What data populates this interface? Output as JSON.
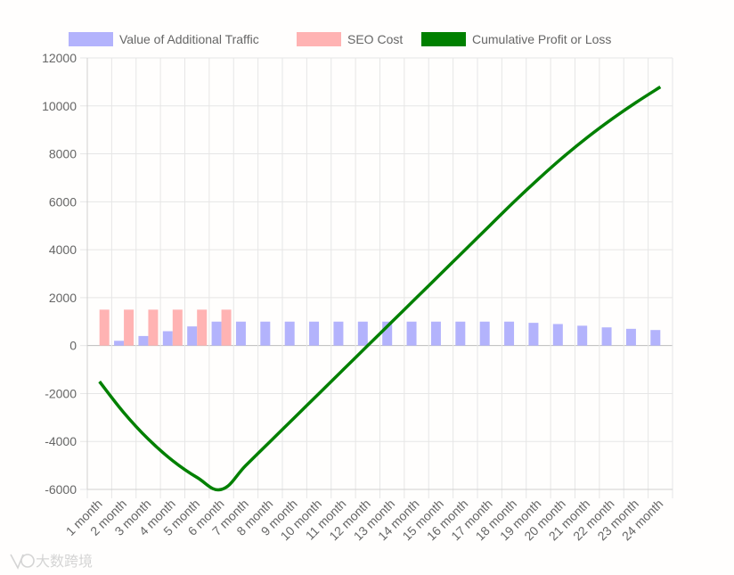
{
  "chart_data": {
    "type": "bar",
    "title": "",
    "xlabel": "",
    "ylabel": "",
    "ylim": [
      -6000,
      12000
    ],
    "y_ticks": [
      12000,
      10000,
      8000,
      6000,
      4000,
      2000,
      0,
      -2000,
      -4000,
      -6000
    ],
    "grid": true,
    "legend_position": "top",
    "categories": [
      "1 month",
      "2 month",
      "3 month",
      "4 month",
      "5 month",
      "6 month",
      "7 month",
      "8 month",
      "9 month",
      "10 month",
      "11 month",
      "12 month",
      "13 month",
      "14 month",
      "15 month",
      "16 month",
      "17 month",
      "18 month",
      "19 month",
      "20 month",
      "21 month",
      "22 month",
      "23 month",
      "24 month"
    ],
    "series": [
      {
        "name": "Value of Additional Traffic",
        "type": "bar",
        "color": "#b3b3fc",
        "values": [
          0,
          200,
          400,
          600,
          800,
          1000,
          1000,
          1000,
          1000,
          1000,
          1000,
          1000,
          1000,
          1000,
          1000,
          1000,
          1000,
          1000,
          950,
          900,
          830,
          760,
          700,
          650
        ]
      },
      {
        "name": "SEO Cost",
        "type": "bar",
        "color": "#ffb3b3",
        "values": [
          1500,
          1500,
          1500,
          1500,
          1500,
          1500,
          0,
          0,
          0,
          0,
          0,
          0,
          0,
          0,
          0,
          0,
          0,
          0,
          0,
          0,
          0,
          0,
          0,
          0
        ]
      },
      {
        "name": "Cumulative Profit or Loss",
        "type": "line",
        "color": "#008000",
        "values": [
          -1500,
          -2800,
          -3900,
          -4800,
          -5500,
          -6000,
          -5000,
          -4000,
          -3000,
          -2000,
          -1000,
          0,
          1000,
          2000,
          3000,
          4000,
          5000,
          6000,
          6950,
          7850,
          8680,
          9440,
          10140,
          10790
        ]
      }
    ]
  },
  "watermark": {
    "text": "大数跨境",
    "icon": "logo-icon"
  }
}
